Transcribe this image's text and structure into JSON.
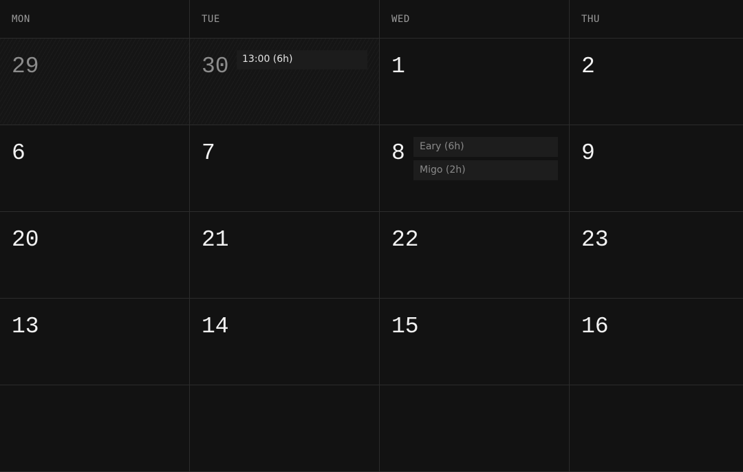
{
  "headers": [
    "MON",
    "TUE",
    "WED",
    "THU"
  ],
  "weeks": [
    [
      {
        "day": "29",
        "past": true,
        "events": []
      },
      {
        "day": "30",
        "past": true,
        "events": [
          "13:00 (6h)"
        ]
      },
      {
        "day": "1",
        "events": []
      },
      {
        "day": "2",
        "events": []
      }
    ],
    [
      {
        "day": "6",
        "events": []
      },
      {
        "day": "7",
        "events": []
      },
      {
        "day": "8",
        "events": [
          "Eary (6h)",
          "Migo (2h)"
        ]
      },
      {
        "day": "9",
        "events": []
      }
    ],
    [
      {
        "day": "20",
        "events": []
      },
      {
        "day": "21",
        "events": []
      },
      {
        "day": "22",
        "events": []
      },
      {
        "day": "23",
        "events": []
      }
    ],
    [
      {
        "day": "13",
        "events": []
      },
      {
        "day": "14",
        "events": []
      },
      {
        "day": "15",
        "events": []
      },
      {
        "day": "16",
        "events": []
      }
    ]
  ]
}
